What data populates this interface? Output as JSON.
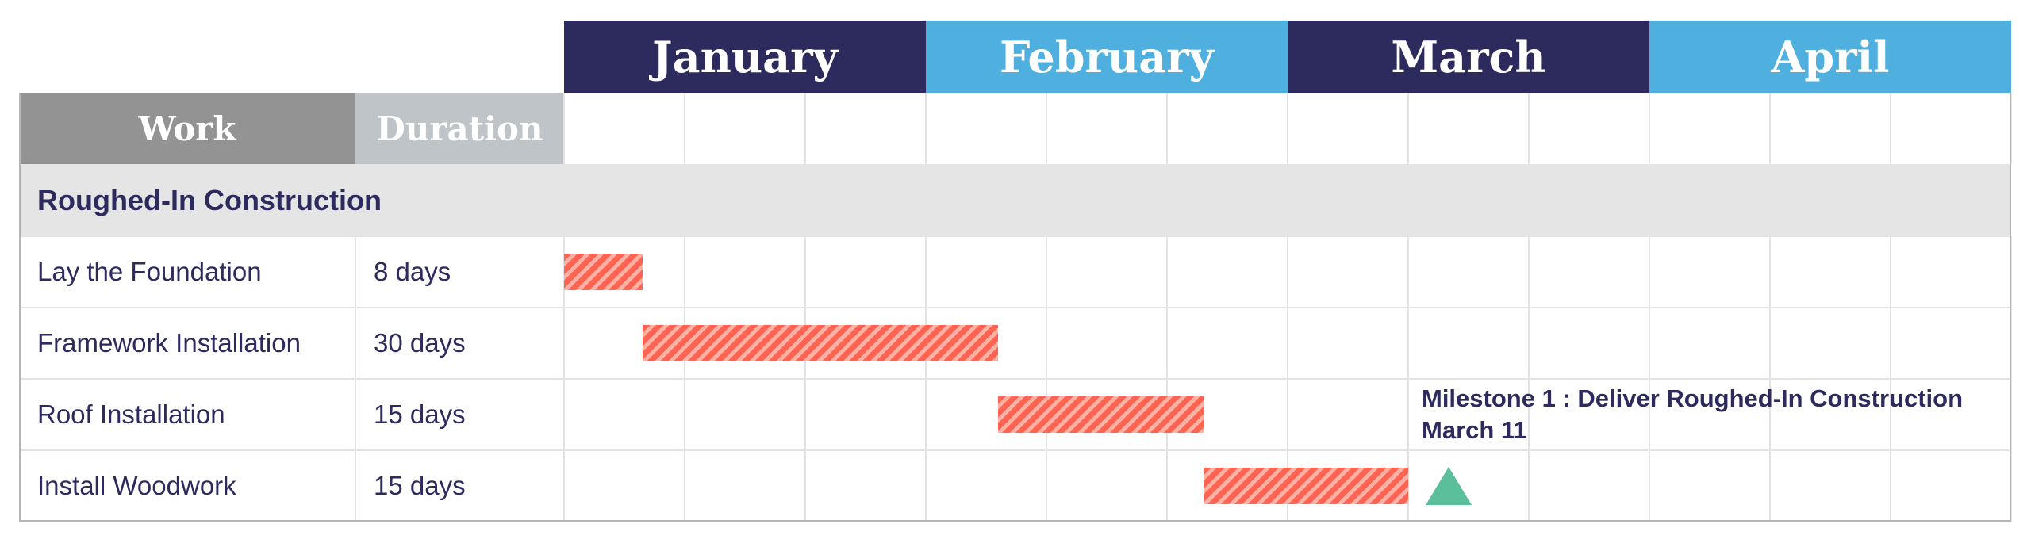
{
  "colors": {
    "month_dark": "#2d2a5e",
    "month_light": "#4fb0e0",
    "work_header": "#939393",
    "duration_header": "#bfc4c9",
    "bar": "#ff6452",
    "milestone": "#5bbf9c",
    "text": "#2d2a5e"
  },
  "chart_data": {
    "type": "gantt",
    "months": [
      "January",
      "February",
      "March",
      "April"
    ],
    "columns": {
      "work": "Work",
      "duration": "Duration"
    },
    "sections": [
      {
        "name": "Roughed-In Construction",
        "tasks": [
          {
            "name": "Lay the Foundation",
            "duration": "8 days",
            "start_week": 0.0,
            "end_week": 0.65
          },
          {
            "name": "Framework Installation",
            "duration": "30 days",
            "start_week": 0.65,
            "end_week": 3.6
          },
          {
            "name": "Roof Installation",
            "duration": "15 days",
            "start_week": 3.6,
            "end_week": 5.3
          },
          {
            "name": "Install Woodwork",
            "duration": "15 days",
            "start_week": 5.3,
            "end_week": 7.0
          }
        ]
      }
    ],
    "weeks_per_month": 3,
    "milestone": {
      "line1": "Milestone 1 : Deliver Roughed-In Construction",
      "line2": "March 11",
      "week": 7.0
    }
  }
}
